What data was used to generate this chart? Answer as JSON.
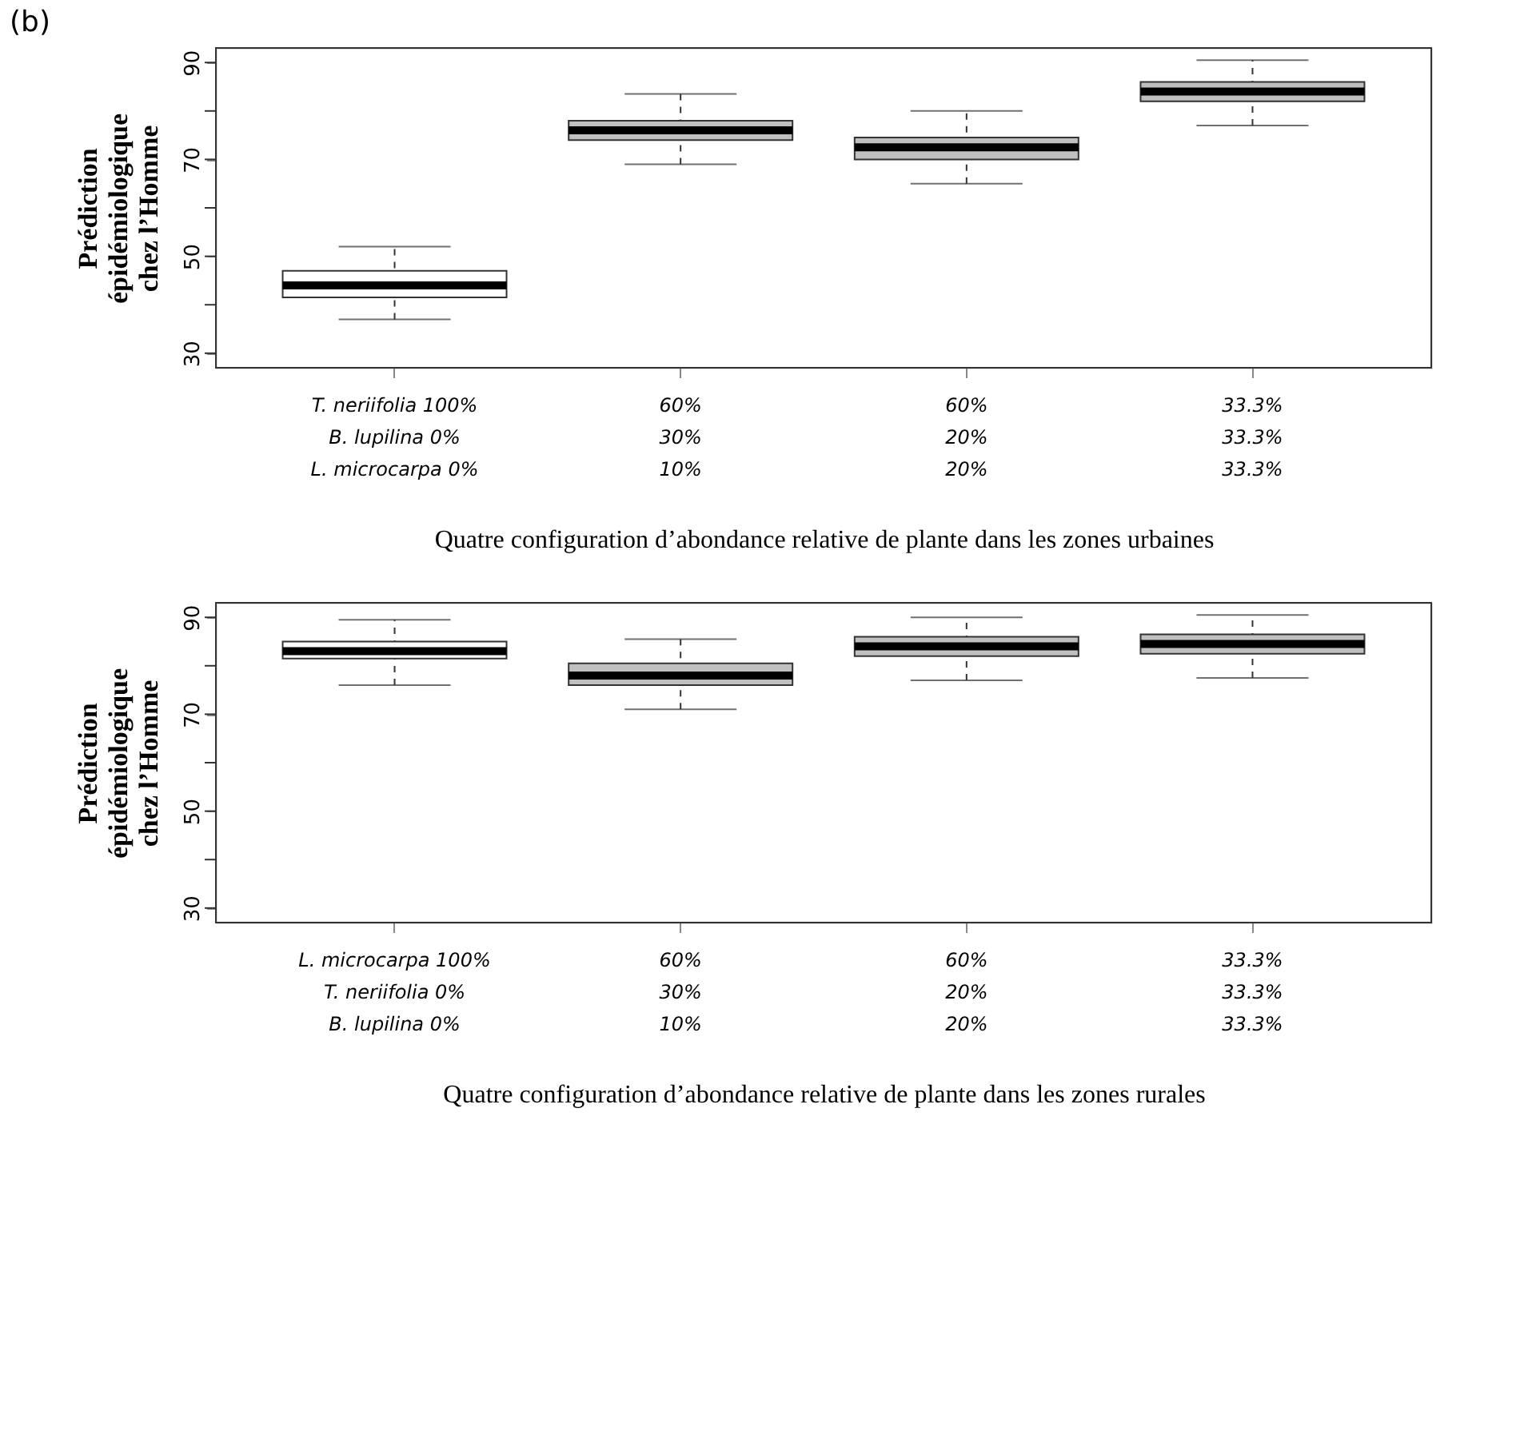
{
  "chart_data": [
    {
      "type": "box",
      "title": "(b)",
      "xlabel": "Quatre configuration d’abondance relative de plante dans les zones urbaines",
      "ylabel": "Prédiction\népidémiologique\nchez l’Homme",
      "categories": [
        "T. neriifolia 100%\nB. lupilina 0%\nL. microcarpa 0%",
        "60%\n30%\n10%",
        "60%\n20%\n20%",
        "33.3%\n33.3%\n33.3%"
      ],
      "colors": [
        "#ffffff",
        "#c0c0c0",
        "#c0c0c0",
        "#c0c0c0"
      ],
      "boxes": [
        {
          "low": 37,
          "q1": 41.5,
          "median": 44,
          "q3": 47,
          "high": 52
        },
        {
          "low": 69,
          "q1": 74,
          "median": 76,
          "q3": 78,
          "high": 83.5
        },
        {
          "low": 65,
          "q1": 70,
          "median": 72.5,
          "q3": 74.5,
          "high": 80
        },
        {
          "low": 77,
          "q1": 82,
          "median": 84,
          "q3": 86,
          "high": 90.5
        }
      ],
      "ylim": [
        27,
        93
      ],
      "yticks": [
        30,
        {
          "value": 40,
          "label": null
        },
        50,
        {
          "value": 60,
          "label": null
        },
        70,
        {
          "value": 80,
          "label": null
        },
        90
      ],
      "grid": false,
      "line_style": "dashed"
    },
    {
      "type": "box",
      "xlabel": "Quatre configuration d’abondance relative de plante dans les zones rurales",
      "ylabel": "Prédiction\népidémiologique\nchez l’Homme",
      "categories": [
        "L. microcarpa 100%\nT. neriifolia 0%\nB. lupilina 0%",
        "60%\n30%\n10%",
        "60%\n20%\n20%",
        "33.3%\n33.3%\n33.3%"
      ],
      "colors": [
        "#ffffff",
        "#c0c0c0",
        "#c0c0c0",
        "#c0c0c0"
      ],
      "boxes": [
        {
          "low": 76,
          "q1": 81.5,
          "median": 83,
          "q3": 85,
          "high": 89.5
        },
        {
          "low": 71,
          "q1": 76,
          "median": 78,
          "q3": 80.5,
          "high": 85.5
        },
        {
          "low": 77,
          "q1": 82,
          "median": 84,
          "q3": 86,
          "high": 90
        },
        {
          "low": 77.5,
          "q1": 82.5,
          "median": 84.5,
          "q3": 86.5,
          "high": 90.5
        }
      ],
      "ylim": [
        27,
        93
      ],
      "yticks": [
        30,
        {
          "value": 40,
          "label": null
        },
        50,
        {
          "value": 60,
          "label": null
        },
        70,
        {
          "value": 80,
          "label": null
        },
        90
      ],
      "grid": false,
      "line_style": "dashed"
    }
  ]
}
